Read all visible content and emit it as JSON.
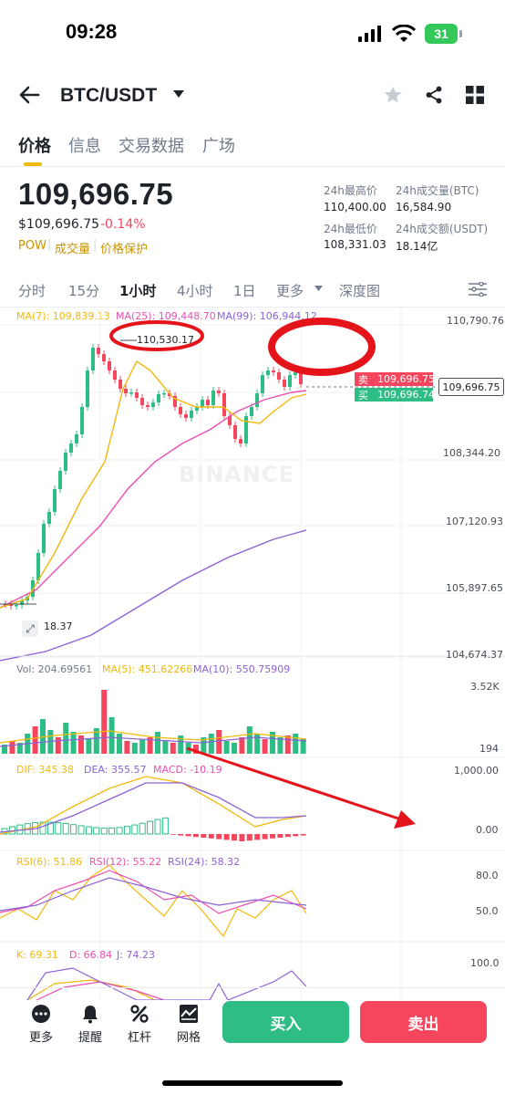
{
  "status": {
    "time": "09:28",
    "battery": "31"
  },
  "nav": {
    "title": "BTC/USDT"
  },
  "tabs": [
    "价格",
    "信息",
    "交易数据",
    "广场"
  ],
  "price": {
    "last": "109,696.75",
    "usd": "$109,696.75",
    "change": "-0.14%",
    "tag_pow": "POW",
    "tag_vol": "成交量",
    "tag_protect": "价格保护"
  },
  "stats": {
    "high_label": "24h最高价",
    "high": "110,400.00",
    "low_label": "24h最低价",
    "low": "108,331.03",
    "vol_btc_label": "24h成交量(BTC)",
    "vol_btc": "16,584.90",
    "vol_usdt_label": "24h成交额(USDT)",
    "vol_usdt": "18.14亿"
  },
  "timeframes": [
    "分时",
    "15分",
    "1小时",
    "4小时",
    "1日",
    "更多",
    "深度图"
  ],
  "ma": {
    "ma7": "MA(7): 109,839.13",
    "ma25": "MA(25): 109,448.70",
    "ma99": "MA(99): 106,944.12"
  },
  "axis": {
    "y1": "110,790.76",
    "y2": "108,344.20",
    "y3": "107,120.93",
    "y4": "105,897.65",
    "y5": "104,674.37"
  },
  "annot": {
    "high_marker": "110,530.17",
    "low_marker": "18.37",
    "sell_label": "卖",
    "sell_price": "109,696.75",
    "buy_label": "买",
    "buy_price": "109,696.74",
    "current_price": "109,696.75",
    "watermark": "BINANCE"
  },
  "vol": {
    "vol": "Vol: 204.69561",
    "ma5": "MA(5): 451.62266",
    "ma10": "MA(10): 550.75909",
    "top": "3.52K",
    "bottom": "194"
  },
  "macd": {
    "dif": "DIF: 345.38",
    "dea": "DEA: 355.57",
    "macd": "MACD: -10.19",
    "top": "1,000.00",
    "bottom": "0.00"
  },
  "rsi": {
    "rsi6": "RSI(6): 51.86",
    "rsi12": "RSI(12): 55.22",
    "rsi24": "RSI(24): 58.32",
    "top": "80.0",
    "bottom": "50.0"
  },
  "kdj": {
    "k": "K: 69.31",
    "d": "D: 66.84",
    "j": "J: 74.23",
    "top": "100.0"
  },
  "bottom": {
    "more": "更多",
    "alert": "提醒",
    "leverage": "杠杆",
    "grid": "网格",
    "buy": "买入",
    "sell": "卖出"
  },
  "colors": {
    "up": "#2ebd85",
    "down": "#f6465d",
    "accent": "#f0b90b",
    "ma7": "#f0b90b",
    "ma25": "#e84fb0",
    "ma99": "#8c62d6"
  }
}
